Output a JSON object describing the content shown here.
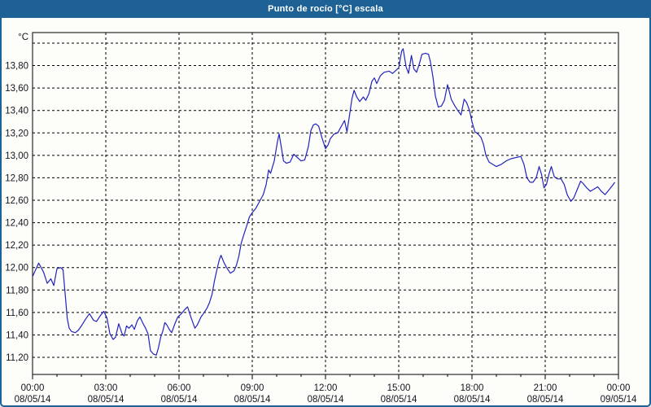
{
  "window": {
    "title": "Punto de rocío [°C] escala"
  },
  "chart_data": {
    "type": "line",
    "title": "Punto de rocío [°C] escala",
    "series_name": "Punto de rocío",
    "unit_label": "°C",
    "legend_position": "none",
    "grid": "dashed",
    "colors": {
      "title_bar": "#1d6195",
      "line": "#2222c0",
      "grid": "#000000",
      "plot_border": "#000000",
      "background": "#fdfdfa",
      "label_text": "#14141e"
    },
    "x_axis": {
      "hours_span": 24,
      "major_tick_hours": 3,
      "minor_tick_hours": 1,
      "ticks": [
        {
          "hour": 0,
          "time": "00:00",
          "date": "08/05/14"
        },
        {
          "hour": 3,
          "time": "03:00",
          "date": "08/05/14"
        },
        {
          "hour": 6,
          "time": "06:00",
          "date": "08/05/14"
        },
        {
          "hour": 9,
          "time": "09:00",
          "date": "08/05/14"
        },
        {
          "hour": 12,
          "time": "12:00",
          "date": "08/05/14"
        },
        {
          "hour": 15,
          "time": "15:00",
          "date": "08/05/14"
        },
        {
          "hour": 18,
          "time": "18:00",
          "date": "08/05/14"
        },
        {
          "hour": 21,
          "time": "21:00",
          "date": "08/05/14"
        },
        {
          "hour": 24,
          "time": "00:00",
          "date": "09/05/14"
        }
      ]
    },
    "y_axis": {
      "ylim": [
        11.048,
        14.094
      ],
      "grid_min": 11.2,
      "grid_max": 14.0,
      "grid_step": 0.2,
      "tick_labels": [
        "11,20",
        "11,40",
        "11,60",
        "11,80",
        "12,00",
        "12,20",
        "12,40",
        "12,60",
        "12,80",
        "13,00",
        "13,20",
        "13,40",
        "13,60",
        "13,80"
      ]
    },
    "points": [
      [
        0.0,
        11.92
      ],
      [
        0.25,
        12.04
      ],
      [
        0.45,
        11.96
      ],
      [
        0.6,
        11.86
      ],
      [
        0.75,
        11.9
      ],
      [
        0.87,
        11.84
      ],
      [
        1.0,
        11.99
      ],
      [
        1.15,
        12.0
      ],
      [
        1.25,
        11.98
      ],
      [
        1.33,
        11.78
      ],
      [
        1.42,
        11.55
      ],
      [
        1.5,
        11.46
      ],
      [
        1.6,
        11.43
      ],
      [
        1.75,
        11.42
      ],
      [
        1.87,
        11.44
      ],
      [
        2.0,
        11.48
      ],
      [
        2.17,
        11.54
      ],
      [
        2.33,
        11.59
      ],
      [
        2.5,
        11.53
      ],
      [
        2.62,
        11.52
      ],
      [
        2.77,
        11.57
      ],
      [
        2.92,
        11.61
      ],
      [
        3.05,
        11.55
      ],
      [
        3.17,
        11.41
      ],
      [
        3.3,
        11.36
      ],
      [
        3.4,
        11.38
      ],
      [
        3.53,
        11.5
      ],
      [
        3.67,
        11.41
      ],
      [
        3.75,
        11.39
      ],
      [
        3.85,
        11.48
      ],
      [
        3.95,
        11.46
      ],
      [
        4.07,
        11.49
      ],
      [
        4.17,
        11.45
      ],
      [
        4.3,
        11.53
      ],
      [
        4.4,
        11.56
      ],
      [
        4.53,
        11.5
      ],
      [
        4.63,
        11.46
      ],
      [
        4.73,
        11.41
      ],
      [
        4.83,
        11.26
      ],
      [
        4.95,
        11.23
      ],
      [
        5.07,
        11.22
      ],
      [
        5.15,
        11.28
      ],
      [
        5.25,
        11.38
      ],
      [
        5.33,
        11.43
      ],
      [
        5.42,
        11.51
      ],
      [
        5.5,
        11.49
      ],
      [
        5.6,
        11.45
      ],
      [
        5.7,
        11.42
      ],
      [
        5.83,
        11.5
      ],
      [
        5.95,
        11.56
      ],
      [
        6.1,
        11.59
      ],
      [
        6.25,
        11.63
      ],
      [
        6.35,
        11.65
      ],
      [
        6.5,
        11.55
      ],
      [
        6.65,
        11.46
      ],
      [
        6.75,
        11.49
      ],
      [
        6.9,
        11.56
      ],
      [
        7.0,
        11.59
      ],
      [
        7.15,
        11.64
      ],
      [
        7.25,
        11.69
      ],
      [
        7.35,
        11.76
      ],
      [
        7.45,
        11.88
      ],
      [
        7.55,
        11.98
      ],
      [
        7.65,
        12.07
      ],
      [
        7.72,
        12.11
      ],
      [
        7.85,
        12.04
      ],
      [
        7.95,
        12.0
      ],
      [
        8.1,
        11.95
      ],
      [
        8.25,
        11.97
      ],
      [
        8.35,
        12.02
      ],
      [
        8.45,
        12.1
      ],
      [
        8.55,
        12.22
      ],
      [
        8.65,
        12.29
      ],
      [
        8.77,
        12.37
      ],
      [
        8.88,
        12.45
      ],
      [
        9.0,
        12.49
      ],
      [
        9.15,
        12.53
      ],
      [
        9.3,
        12.59
      ],
      [
        9.45,
        12.65
      ],
      [
        9.57,
        12.74
      ],
      [
        9.67,
        12.87
      ],
      [
        9.75,
        12.84
      ],
      [
        9.9,
        12.95
      ],
      [
        10.03,
        13.12
      ],
      [
        10.1,
        13.19
      ],
      [
        10.2,
        13.06
      ],
      [
        10.28,
        12.95
      ],
      [
        10.4,
        12.93
      ],
      [
        10.55,
        12.94
      ],
      [
        10.7,
        13.01
      ],
      [
        10.85,
        12.98
      ],
      [
        11.0,
        12.95
      ],
      [
        11.15,
        12.96
      ],
      [
        11.3,
        13.08
      ],
      [
        11.4,
        13.22
      ],
      [
        11.5,
        13.27
      ],
      [
        11.6,
        13.28
      ],
      [
        11.72,
        13.26
      ],
      [
        11.85,
        13.16
      ],
      [
        12.0,
        13.06
      ],
      [
        12.1,
        13.09
      ],
      [
        12.2,
        13.15
      ],
      [
        12.35,
        13.19
      ],
      [
        12.5,
        13.2
      ],
      [
        12.65,
        13.26
      ],
      [
        12.78,
        13.31
      ],
      [
        12.88,
        13.21
      ],
      [
        13.0,
        13.38
      ],
      [
        13.08,
        13.5
      ],
      [
        13.17,
        13.58
      ],
      [
        13.28,
        13.52
      ],
      [
        13.4,
        13.48
      ],
      [
        13.55,
        13.52
      ],
      [
        13.65,
        13.49
      ],
      [
        13.78,
        13.55
      ],
      [
        13.9,
        13.66
      ],
      [
        14.0,
        13.69
      ],
      [
        14.1,
        13.64
      ],
      [
        14.25,
        13.71
      ],
      [
        14.4,
        13.74
      ],
      [
        14.6,
        13.75
      ],
      [
        14.75,
        13.73
      ],
      [
        14.9,
        13.76
      ],
      [
        15.0,
        13.78
      ],
      [
        15.12,
        13.93
      ],
      [
        15.18,
        13.95
      ],
      [
        15.3,
        13.79
      ],
      [
        15.4,
        13.73
      ],
      [
        15.52,
        13.89
      ],
      [
        15.62,
        13.77
      ],
      [
        15.73,
        13.74
      ],
      [
        15.85,
        13.82
      ],
      [
        15.95,
        13.9
      ],
      [
        16.1,
        13.91
      ],
      [
        16.22,
        13.9
      ],
      [
        16.3,
        13.83
      ],
      [
        16.4,
        13.7
      ],
      [
        16.5,
        13.53
      ],
      [
        16.62,
        13.43
      ],
      [
        16.75,
        13.44
      ],
      [
        16.87,
        13.49
      ],
      [
        17.0,
        13.63
      ],
      [
        17.15,
        13.5
      ],
      [
        17.3,
        13.44
      ],
      [
        17.45,
        13.39
      ],
      [
        17.55,
        13.36
      ],
      [
        17.68,
        13.5
      ],
      [
        17.78,
        13.47
      ],
      [
        17.9,
        13.4
      ],
      [
        18.0,
        13.3
      ],
      [
        18.12,
        13.21
      ],
      [
        18.25,
        13.19
      ],
      [
        18.37,
        13.16
      ],
      [
        18.47,
        13.1
      ],
      [
        18.57,
        13.0
      ],
      [
        18.7,
        12.94
      ],
      [
        18.85,
        12.92
      ],
      [
        19.0,
        12.9
      ],
      [
        19.2,
        12.92
      ],
      [
        19.4,
        12.95
      ],
      [
        19.6,
        12.97
      ],
      [
        19.8,
        12.98
      ],
      [
        20.0,
        12.99
      ],
      [
        20.13,
        12.92
      ],
      [
        20.25,
        12.8
      ],
      [
        20.38,
        12.76
      ],
      [
        20.5,
        12.76
      ],
      [
        20.63,
        12.8
      ],
      [
        20.75,
        12.9
      ],
      [
        20.85,
        12.83
      ],
      [
        20.95,
        12.71
      ],
      [
        21.05,
        12.74
      ],
      [
        21.15,
        12.83
      ],
      [
        21.25,
        12.9
      ],
      [
        21.37,
        12.81
      ],
      [
        21.5,
        12.79
      ],
      [
        21.65,
        12.79
      ],
      [
        21.78,
        12.74
      ],
      [
        21.9,
        12.65
      ],
      [
        22.05,
        12.59
      ],
      [
        22.17,
        12.62
      ],
      [
        22.3,
        12.69
      ],
      [
        22.45,
        12.77
      ],
      [
        22.55,
        12.75
      ],
      [
        22.7,
        12.71
      ],
      [
        22.85,
        12.68
      ],
      [
        23.0,
        12.7
      ],
      [
        23.15,
        12.72
      ],
      [
        23.3,
        12.68
      ],
      [
        23.45,
        12.65
      ],
      [
        23.6,
        12.69
      ],
      [
        23.75,
        12.73
      ],
      [
        23.85,
        12.76
      ]
    ]
  }
}
